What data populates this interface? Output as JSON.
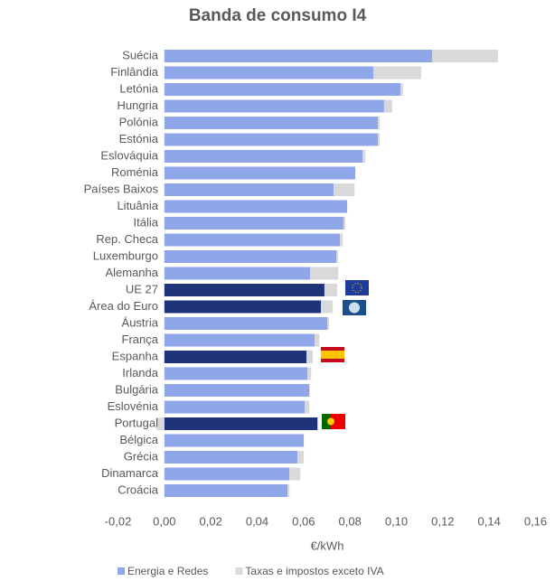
{
  "chart_data": {
    "type": "stacked_barh",
    "title": "Banda de consumo I4",
    "categories": [
      "Suécia",
      "Finlândia",
      "Letónia",
      "Hungria",
      "Polónia",
      "Estónia",
      "Eslováquia",
      "Roménia",
      "Países Baixos",
      "Lituânia",
      "Itália",
      "Rep. Checa",
      "Luxemburgo",
      "Alemanha",
      "UE 27",
      "Área do Euro",
      "Áustria",
      "França",
      "Espanha",
      "Irlanda",
      "Bulgária",
      "Eslovénia",
      "Portugal",
      "Bélgica",
      "Grécia",
      "Dinamarca",
      "Croácia"
    ],
    "series": [
      {
        "name": "Energia e Redes",
        "color": "#8fa6e8",
        "colors": [
          "#8fa6e8",
          "#8fa6e8",
          "#8fa6e8",
          "#8fa6e8",
          "#8fa6e8",
          "#8fa6e8",
          "#8fa6e8",
          "#8fa6e8",
          "#8fa6e8",
          "#8fa6e8",
          "#8fa6e8",
          "#8fa6e8",
          "#8fa6e8",
          "#8fa6e8",
          "#1f3379",
          "#1f3379",
          "#8fa6e8",
          "#8fa6e8",
          "#1f3379",
          "#8fa6e8",
          "#8fa6e8",
          "#8fa6e8",
          "#1f3379",
          "#8fa6e8",
          "#8fa6e8",
          "#8fa6e8",
          "#8fa6e8"
        ],
        "values": [
          0.1154,
          0.0901,
          0.1018,
          0.0947,
          0.092,
          0.092,
          0.0854,
          0.0823,
          0.073,
          0.0788,
          0.0772,
          0.0757,
          0.0741,
          0.0628,
          0.069,
          0.0675,
          0.0702,
          0.0648,
          0.0613,
          0.0617,
          0.0625,
          0.0605,
          0.066,
          0.0601,
          0.0574,
          0.0539,
          0.0531
        ]
      },
      {
        "name": "Taxas e impostos exceto IVA",
        "color": "#d9d9d9",
        "values": [
          0.0284,
          0.0206,
          0.001,
          0.0035,
          0.0008,
          0.0008,
          0.0012,
          0,
          0.009,
          0,
          0.0008,
          0.0012,
          0.0008,
          0.0121,
          0.0055,
          0.0051,
          0.0008,
          0.002,
          0.0027,
          0.0016,
          0,
          0.002,
          -0.0035,
          0,
          0.0027,
          0.0047,
          0.0008
        ]
      }
    ],
    "xlabel": "€/kWh",
    "xlim": [
      -0.02,
      0.16
    ],
    "xticks": [
      {
        "value": -0.02,
        "label": "-0,02"
      },
      {
        "value": 0,
        "label": "0,00"
      },
      {
        "value": 0.02,
        "label": "0,02"
      },
      {
        "value": 0.04,
        "label": "0,04"
      },
      {
        "value": 0.06,
        "label": "0,06"
      },
      {
        "value": 0.08,
        "label": "0,08"
      },
      {
        "value": 0.1,
        "label": "0,10"
      },
      {
        "value": 0.12,
        "label": "0,12"
      },
      {
        "value": 0.14,
        "label": "0,14"
      },
      {
        "value": 0.16,
        "label": "0,16"
      }
    ],
    "grid": false,
    "legend": "bottom"
  }
}
